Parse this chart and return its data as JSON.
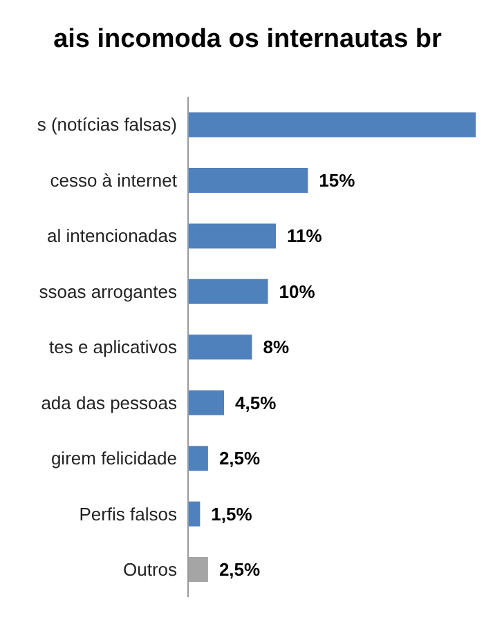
{
  "chart_data": {
    "type": "bar",
    "orientation": "horizontal",
    "title": "ais incomoda os internautas br",
    "categories": [
      "s (notícias falsas)",
      "cesso à internet",
      "al intencionadas",
      "ssoas arrogantes",
      "tes e aplicativos",
      "ada das pessoas",
      "girem felicidade",
      "Perfis falsos",
      "Outros"
    ],
    "values": [
      36,
      15,
      11,
      10,
      8,
      4.5,
      2.5,
      1.5,
      2.5
    ],
    "colors": [
      "#4f81bd",
      "#4f81bd",
      "#4f81bd",
      "#4f81bd",
      "#4f81bd",
      "#4f81bd",
      "#4f81bd",
      "#4f81bd",
      "#a5a5a5"
    ],
    "value_labels": [
      null,
      "15%",
      "11%",
      "10%",
      "8%",
      "4,5%",
      "2,5%",
      "1,5%",
      "2,5%"
    ]
  }
}
